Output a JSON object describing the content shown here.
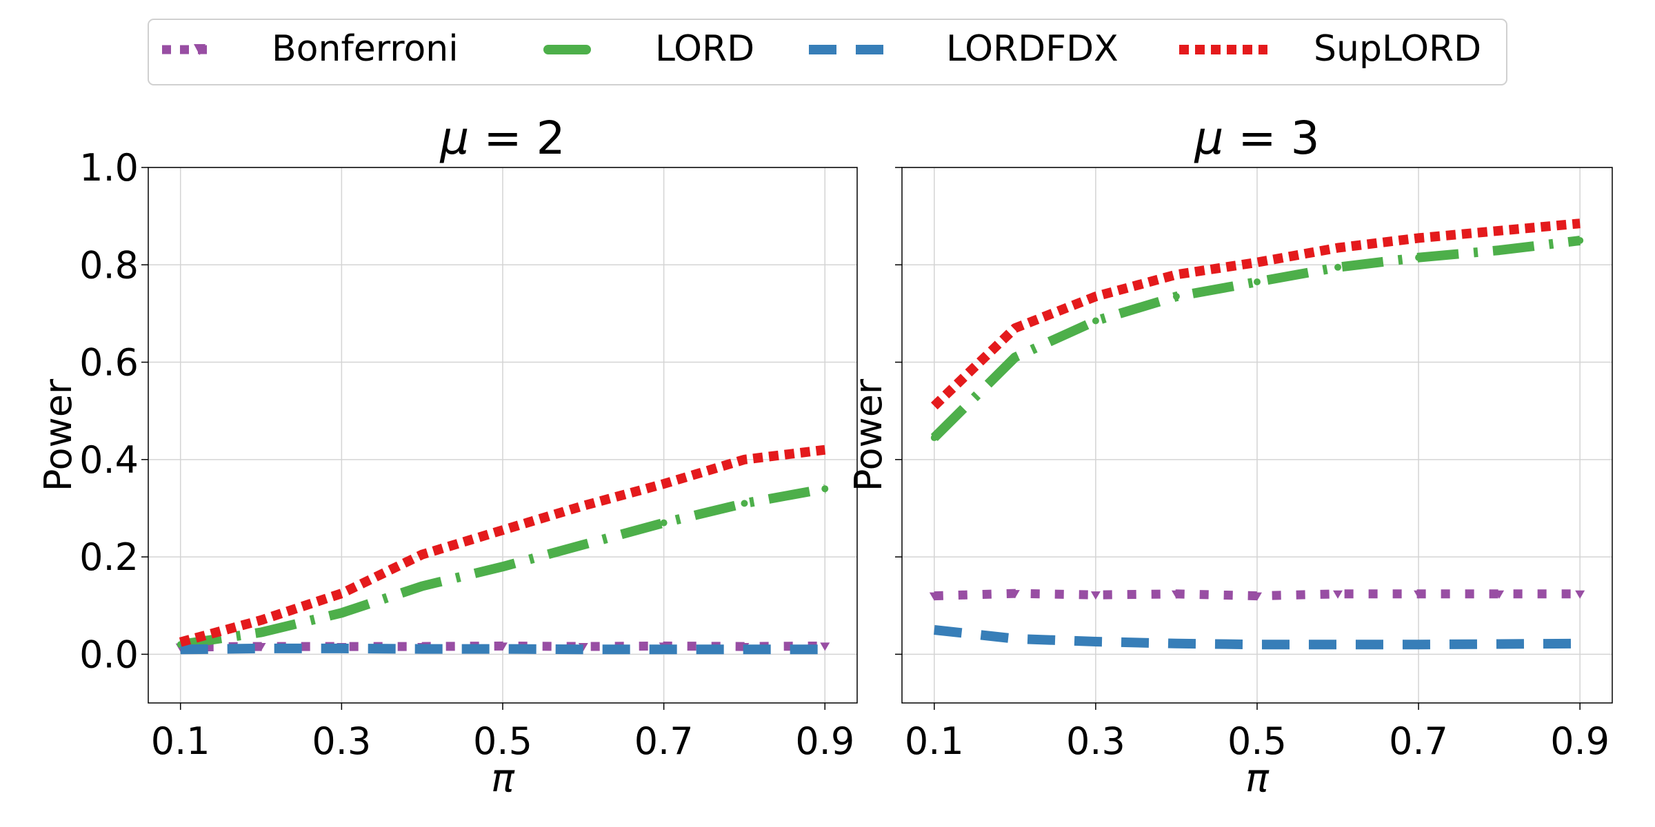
{
  "chart_data": [
    {
      "type": "line",
      "title_prefix": "μ",
      "title_value": "= 2",
      "xlabel": "π",
      "ylabel": "Power",
      "xlim": [
        0.06,
        0.94
      ],
      "ylim": [
        -0.1,
        1.0
      ],
      "x_ticks": [
        "0.1",
        "0.3",
        "0.5",
        "0.7",
        "0.9"
      ],
      "y_ticks": [
        "0.0",
        "0.2",
        "0.4",
        "0.6",
        "0.8",
        "1.0"
      ],
      "y_tick_labels_visible": true,
      "grid": true,
      "x": [
        0.1,
        0.2,
        0.3,
        0.4,
        0.5,
        0.6,
        0.7,
        0.8,
        0.9
      ],
      "series": [
        {
          "name": "Bonferroni",
          "values": [
            0.015,
            0.016,
            0.016,
            0.016,
            0.017,
            0.016,
            0.017,
            0.016,
            0.017
          ]
        },
        {
          "name": "LORD",
          "values": [
            0.02,
            0.045,
            0.085,
            0.14,
            0.18,
            0.225,
            0.27,
            0.31,
            0.34
          ]
        },
        {
          "name": "LORDFDX",
          "values": [
            0.01,
            0.012,
            0.012,
            0.011,
            0.011,
            0.01,
            0.01,
            0.01,
            0.01
          ]
        },
        {
          "name": "SupLORD",
          "values": [
            0.025,
            0.07,
            0.125,
            0.205,
            0.255,
            0.305,
            0.35,
            0.4,
            0.42
          ]
        }
      ]
    },
    {
      "type": "line",
      "title_prefix": "μ",
      "title_value": "= 3",
      "xlabel": "π",
      "ylabel": "Power",
      "xlim": [
        0.06,
        0.94
      ],
      "ylim": [
        -0.1,
        1.0
      ],
      "x_ticks": [
        "0.1",
        "0.3",
        "0.5",
        "0.7",
        "0.9"
      ],
      "y_ticks": [
        "0.0",
        "0.2",
        "0.4",
        "0.6",
        "0.8",
        "1.0"
      ],
      "y_tick_labels_visible": false,
      "grid": true,
      "x": [
        0.1,
        0.2,
        0.3,
        0.4,
        0.5,
        0.6,
        0.7,
        0.8,
        0.9
      ],
      "series": [
        {
          "name": "Bonferroni",
          "values": [
            0.12,
            0.125,
            0.122,
            0.124,
            0.12,
            0.124,
            0.124,
            0.124,
            0.124
          ]
        },
        {
          "name": "LORD",
          "values": [
            0.445,
            0.61,
            0.685,
            0.735,
            0.765,
            0.795,
            0.815,
            0.83,
            0.85
          ]
        },
        {
          "name": "LORDFDX",
          "values": [
            0.05,
            0.032,
            0.026,
            0.022,
            0.02,
            0.02,
            0.02,
            0.021,
            0.022
          ]
        },
        {
          "name": "SupLORD",
          "values": [
            0.51,
            0.67,
            0.735,
            0.78,
            0.805,
            0.835,
            0.855,
            0.87,
            0.885
          ]
        }
      ]
    }
  ],
  "legend": {
    "placement": "top-center",
    "items": [
      {
        "label": "Bonferroni",
        "color": "#984ea3",
        "icon": "dotted-line-triangle-marker-icon"
      },
      {
        "label": "LORD",
        "color": "#4daf4a",
        "icon": "dash-dot-line-icon"
      },
      {
        "label": "LORDFDX",
        "color": "#377eb8",
        "icon": "dashed-line-icon"
      },
      {
        "label": "SupLORD",
        "color": "#e41a1c",
        "icon": "dotted-line-icon"
      }
    ]
  }
}
